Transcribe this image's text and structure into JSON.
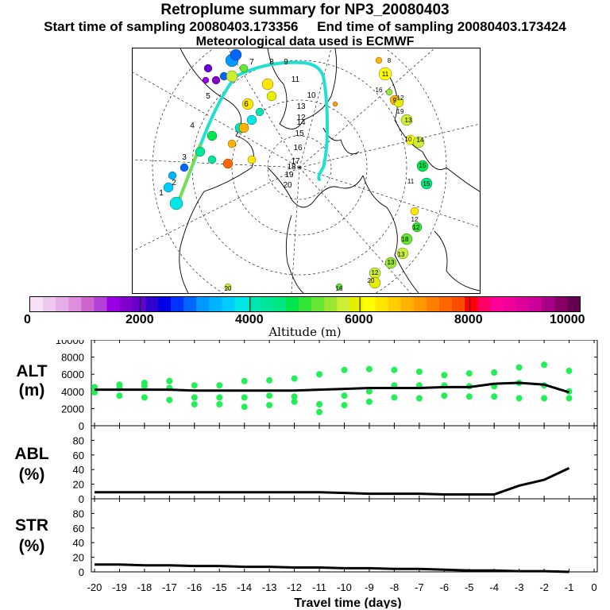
{
  "header": {
    "title": "Retroplume summary for NP3_20080403",
    "start_label": "Start time of sampling 20080403.173356",
    "end_label": "End time of sampling 20080403.173424",
    "met_label": "Meteorological data used is ECMWF"
  },
  "colorbar": {
    "label": "Altitude (m)",
    "tick_labels": [
      "0",
      "2000",
      "4000",
      "6000",
      "8000",
      "10000"
    ],
    "range": [
      0,
      10000
    ],
    "colors": [
      "#f7e0f7",
      "#efc8ef",
      "#e6aee6",
      "#dd8fdd",
      "#cc66cc",
      "#b240d9",
      "#9900e6",
      "#8000cc",
      "#6600cc",
      "#3300cc",
      "#0000e6",
      "#0033ff",
      "#0066ff",
      "#0099ff",
      "#00b3ff",
      "#00ccff",
      "#00e6e6",
      "#00e6b3",
      "#00e699",
      "#00e680",
      "#00e64d",
      "#33e633",
      "#66e633",
      "#99e633",
      "#ccee33",
      "#e6ee00",
      "#ffff00",
      "#ffe600",
      "#ffcc00",
      "#ffb300",
      "#ff9900",
      "#ff8000",
      "#ff6600",
      "#ff4d00",
      "#ff0000",
      "#ff0066",
      "#ff0099",
      "#ee0099",
      "#dd0099",
      "#cc0099",
      "#aa0088",
      "#880066",
      "#660055"
    ]
  },
  "map": {
    "labels": [
      "1",
      "2",
      "3",
      "4",
      "5",
      "6",
      "7",
      "8",
      "9",
      "10",
      "11",
      "12",
      "13",
      "14",
      "15",
      "16",
      "17",
      "18",
      "19",
      "20"
    ],
    "numbers_right": [
      "8",
      "11",
      "16",
      "9",
      "12",
      "19",
      "13",
      "10",
      "14",
      "15",
      "11",
      "15",
      "12",
      "12",
      "18",
      "13",
      "13",
      "12",
      "20",
      "16",
      "20"
    ]
  },
  "panels": {
    "alt": {
      "label_top": "ALT",
      "label_bottom": "(m)",
      "ticks": [
        "10000",
        "8000",
        "6000",
        "4000",
        "2000",
        "0"
      ]
    },
    "abl": {
      "label_top": "ABL",
      "label_bottom": "(%)",
      "ticks": [
        "80",
        "60",
        "40",
        "20",
        "0"
      ]
    },
    "str": {
      "label_top": "STR",
      "label_bottom": "(%)",
      "ticks": [
        "80",
        "60",
        "40",
        "20",
        "0"
      ]
    }
  },
  "xaxis": {
    "title": "Travel time (days)",
    "ticks": [
      "-20",
      "-19",
      "-18",
      "-17",
      "-16",
      "-15",
      "-14",
      "-13",
      "-12",
      "-11",
      "-10",
      "-9",
      "-8",
      "-7",
      "-6",
      "-5",
      "-4",
      "-3",
      "-2",
      "-1",
      "0"
    ]
  },
  "chart_data": [
    {
      "type": "line",
      "title": "ALT (m)",
      "xlabel": "Travel time (days)",
      "ylabel": "Altitude (m)",
      "ylim": [
        0,
        10000
      ],
      "xlim": [
        -20,
        0
      ],
      "series": [
        {
          "name": "mean altitude",
          "x": [
            -20,
            -19,
            -18,
            -17,
            -16,
            -15,
            -14,
            -13,
            -12,
            -11,
            -10,
            -9,
            -8,
            -7,
            -6,
            -5,
            -4,
            -3,
            -2,
            -1
          ],
          "values": [
            4200,
            4200,
            4200,
            4200,
            4100,
            4100,
            4100,
            4100,
            4100,
            4200,
            4300,
            4400,
            4400,
            4400,
            4500,
            4500,
            4900,
            5000,
            4800,
            3900
          ]
        },
        {
          "name": "cluster altitudes",
          "x": [
            -20,
            -20,
            -19,
            -19,
            -19,
            -18,
            -18,
            -18,
            -17,
            -17,
            -17,
            -16,
            -16,
            -16,
            -15,
            -15,
            -15,
            -14,
            -14,
            -14,
            -13,
            -13,
            -13,
            -12,
            -12,
            -12,
            -11,
            -11,
            -11,
            -10,
            -10,
            -10,
            -9,
            -9,
            -9,
            -8,
            -8,
            -8,
            -7,
            -7,
            -7,
            -6,
            -6,
            -6,
            -5,
            -5,
            -5,
            -4,
            -4,
            -4,
            -3,
            -3,
            -3,
            -2,
            -2,
            -2,
            -1,
            -1,
            -1
          ],
          "values": [
            3900,
            4500,
            3500,
            4400,
            4800,
            3300,
            4600,
            5000,
            3000,
            4400,
            5200,
            2500,
            3300,
            4700,
            2500,
            3300,
            4700,
            2200,
            3300,
            5200,
            2400,
            3500,
            5300,
            2800,
            3400,
            5500,
            1600,
            2500,
            6000,
            2400,
            3500,
            6500,
            2800,
            4000,
            6600,
            3300,
            4700,
            6500,
            3200,
            4700,
            6300,
            3500,
            4700,
            5900,
            3400,
            4600,
            6100,
            3400,
            4600,
            6200,
            3200,
            5000,
            6800,
            3200,
            4700,
            7100,
            3200,
            4000,
            6400
          ]
        }
      ]
    },
    {
      "type": "line",
      "title": "ABL (%)",
      "xlabel": "Travel time (days)",
      "ylabel": "ABL (%)",
      "ylim": [
        0,
        100
      ],
      "xlim": [
        -20,
        0
      ],
      "series": [
        {
          "name": "ABL",
          "x": [
            -20,
            -19,
            -18,
            -17,
            -16,
            -15,
            -14,
            -13,
            -12,
            -11,
            -10,
            -9,
            -8,
            -7,
            -6,
            -5,
            -4,
            -3,
            -2,
            -1
          ],
          "values": [
            9,
            9,
            9,
            9,
            9,
            9,
            9,
            9,
            9,
            9,
            8,
            7,
            7,
            7,
            6,
            6,
            6,
            18,
            26,
            42
          ]
        }
      ]
    },
    {
      "type": "line",
      "title": "STR (%)",
      "xlabel": "Travel time (days)",
      "ylabel": "STR (%)",
      "ylim": [
        0,
        100
      ],
      "xlim": [
        -20,
        0
      ],
      "series": [
        {
          "name": "STR",
          "x": [
            -20,
            -19,
            -18,
            -17,
            -16,
            -15,
            -14,
            -13,
            -12,
            -11,
            -10,
            -9,
            -8,
            -7,
            -6,
            -5,
            -4,
            -3,
            -2,
            -1
          ],
          "values": [
            10,
            10,
            9,
            9,
            8,
            8,
            7,
            7,
            6,
            6,
            5,
            5,
            4,
            4,
            3,
            2,
            2,
            1,
            1,
            0
          ]
        }
      ]
    }
  ]
}
